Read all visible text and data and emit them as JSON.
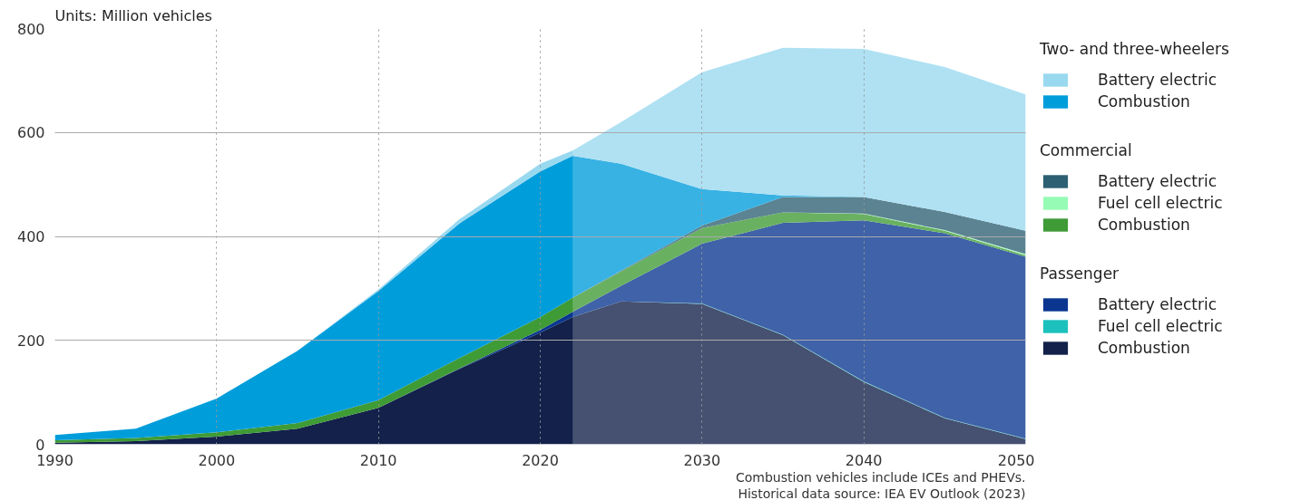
{
  "chart_data": {
    "type": "area",
    "stacked": true,
    "ylabel": "Units: Million vehicles",
    "x": [
      1990,
      1995,
      2000,
      2005,
      2010,
      2015,
      2020,
      2022,
      2025,
      2030,
      2035,
      2040,
      2045,
      2050
    ],
    "xlim": [
      1990,
      2050
    ],
    "xticks": [
      1990,
      2000,
      2010,
      2020,
      2030,
      2040,
      2050
    ],
    "ylim": [
      0,
      800
    ],
    "yticks": [
      0,
      200,
      400,
      600,
      800
    ],
    "grid": true,
    "legend": "right",
    "legend_title": [
      null,
      null,
      "Passenger",
      null,
      null,
      "Commercial",
      null,
      "Two- and three-wheelers"
    ],
    "series": [
      {
        "name": "Combustion",
        "color": "#13214b",
        "values": [
          3,
          6,
          15,
          30,
          70,
          145,
          215,
          245,
          275,
          270,
          210,
          120,
          50,
          10
        ]
      },
      {
        "name": "Fuel cell electric",
        "color": "#1cc1bd",
        "values": [
          0,
          0,
          0,
          0,
          0,
          0,
          0,
          0,
          0,
          1,
          1,
          1,
          1,
          1
        ]
      },
      {
        "name": "Battery electric",
        "color": "#0a3690",
        "values": [
          0,
          0,
          0,
          0,
          0,
          1,
          5,
          10,
          30,
          115,
          215,
          310,
          355,
          350
        ]
      },
      {
        "name": "Combustion",
        "color": "#3f9b35",
        "values": [
          5,
          6,
          8,
          11,
          15,
          20,
          25,
          27,
          28,
          30,
          20,
          12,
          5,
          3
        ]
      },
      {
        "name": "Fuel cell electric",
        "color": "#96fbb4",
        "values": [
          0,
          0,
          0,
          0,
          0,
          0,
          0,
          0,
          0,
          0,
          0,
          1,
          1,
          2
        ]
      },
      {
        "name": "Battery electric",
        "color": "#2d6073",
        "values": [
          0,
          0,
          0,
          0,
          0,
          0,
          0,
          0,
          1,
          5,
          30,
          32,
          35,
          45
        ]
      },
      {
        "name": "Combustion",
        "color": "#009ddb",
        "values": [
          10,
          18,
          65,
          139,
          210,
          259,
          280,
          273,
          206,
          70,
          3,
          0,
          0,
          0
        ]
      },
      {
        "name": "Battery electric",
        "color": "#99d9f0",
        "values": [
          0,
          0,
          0,
          0,
          3,
          8,
          15,
          10,
          80,
          225,
          284,
          285,
          279,
          262
        ]
      }
    ],
    "bands": [
      {
        "axis": "x",
        "from": 2022,
        "to": 2050,
        "color": "#ffffff"
      }
    ],
    "annotations": [
      "Combustion vehicles include ICEs and PHEVs.",
      "Historical data source: IEA EV Outlook (2023)"
    ]
  }
}
